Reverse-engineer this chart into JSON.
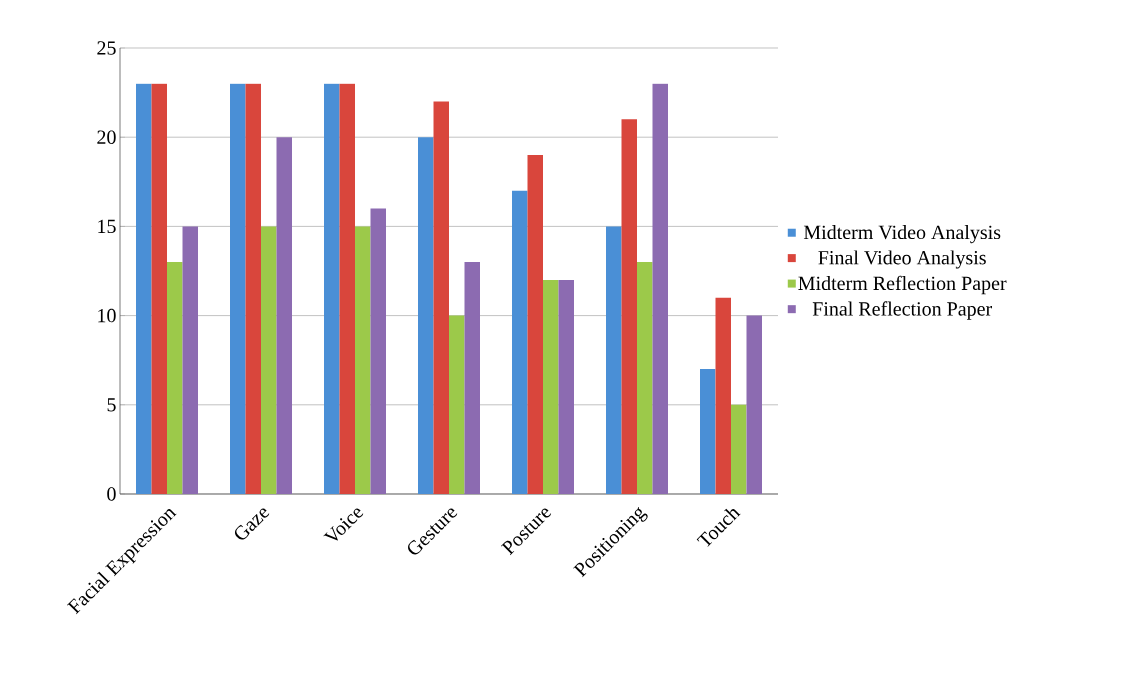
{
  "chart_data": {
    "type": "bar",
    "categories": [
      "Facial Expression",
      "Gaze",
      "Voice",
      "Gesture",
      "Posture",
      "Positioning",
      "Touch"
    ],
    "series": [
      {
        "name": "Midterm Video Analysis",
        "color": "#4a8fd6",
        "values": [
          23,
          23,
          23,
          20,
          17,
          15,
          7
        ]
      },
      {
        "name": "Final Video Analysis",
        "color": "#d9463c",
        "values": [
          23,
          23,
          23,
          22,
          19,
          21,
          11
        ]
      },
      {
        "name": "Midterm Reflection Paper",
        "color": "#9cc94a",
        "values": [
          13,
          15,
          15,
          10,
          12,
          13,
          5
        ]
      },
      {
        "name": "Final Reflection Paper",
        "color": "#8c6bb1",
        "values": [
          15,
          20,
          16,
          13,
          12,
          23,
          10
        ]
      }
    ],
    "ylim": [
      0,
      25
    ],
    "yticks": [
      0,
      5,
      10,
      15,
      20,
      25
    ],
    "grid": "y",
    "legend": "right"
  }
}
